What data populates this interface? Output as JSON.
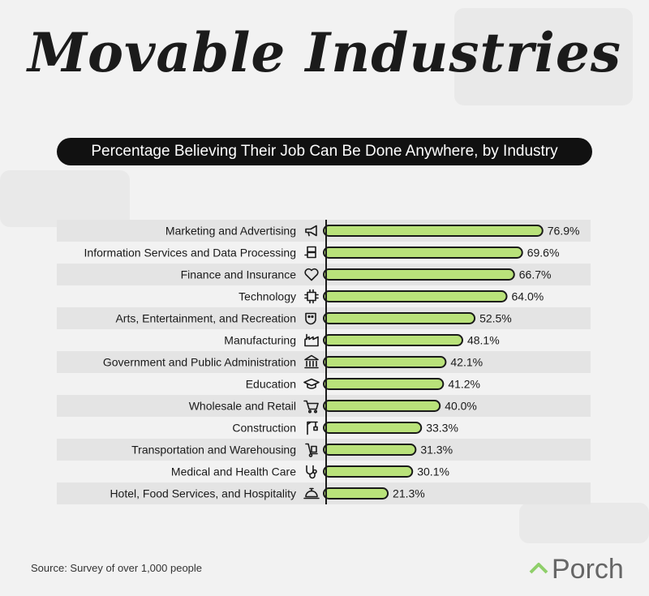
{
  "header": {
    "title": "Movable Industries",
    "subtitle": "Percentage Believing Their Job Can Be Done Anywhere, by Industry"
  },
  "footer": {
    "source": "Source: Survey of over 1,000 people",
    "brand": "Porch"
  },
  "colors": {
    "bar_fill": "#b9e27a",
    "bar_stroke": "#1a1a1a",
    "row_shade": "#e4e4e4",
    "brand_green": "#8fcf6a"
  },
  "chart_data": {
    "type": "bar",
    "orientation": "horizontal",
    "title": "Movable Industries",
    "subtitle": "Percentage Believing Their Job Can Be Done Anywhere, by Industry",
    "xlabel": "",
    "ylabel": "",
    "xlim": [
      0,
      100
    ],
    "unit": "%",
    "grid": false,
    "categories": [
      "Marketing and Advertising",
      "Information Services and Data Processing",
      "Finance and Insurance",
      "Technology",
      "Arts, Entertainment, and Recreation",
      "Manufacturing",
      "Government and Public Administration",
      "Education",
      "Wholesale and Retail",
      "Construction",
      "Transportation and Warehousing",
      "Medical and Health Care",
      "Hotel, Food Services, and Hospitality"
    ],
    "values": [
      76.9,
      69.6,
      66.7,
      64.0,
      52.5,
      48.1,
      42.1,
      41.2,
      40.0,
      33.3,
      31.3,
      30.1,
      21.3
    ],
    "value_labels": [
      "76.9%",
      "69.6%",
      "66.7%",
      "64.0%",
      "52.5%",
      "48.1%",
      "42.1%",
      "41.2%",
      "40.0%",
      "33.3%",
      "31.3%",
      "30.1%",
      "21.3%"
    ],
    "icons": [
      "megaphone-icon",
      "server-icon",
      "handshake-heart-icon",
      "chip-icon",
      "theater-masks-icon",
      "factory-icon",
      "government-building-icon",
      "graduation-cap-icon",
      "shopping-cart-icon",
      "crane-icon",
      "hand-truck-icon",
      "stethoscope-icon",
      "service-bell-icon"
    ]
  }
}
